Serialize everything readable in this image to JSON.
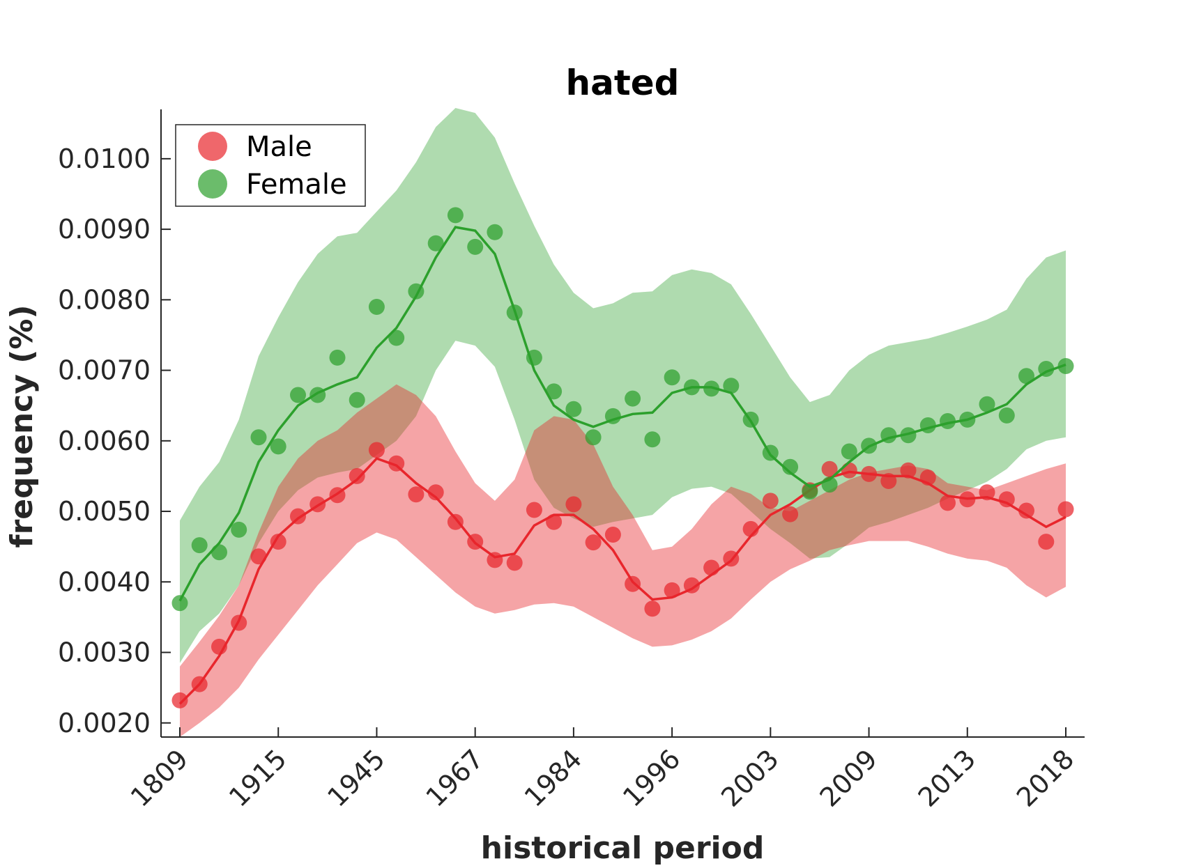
{
  "chart_data": {
    "type": "line",
    "title": "hated",
    "xlabel": "historical period",
    "ylabel": "frequency (%)",
    "ylim": [
      0.0018,
      0.0107
    ],
    "yticks": [
      "0.0020",
      "0.0030",
      "0.0040",
      "0.0050",
      "0.0060",
      "0.0070",
      "0.0080",
      "0.0090",
      "0.0100"
    ],
    "xticks": [
      "1809",
      "1915",
      "1945",
      "1967",
      "1984",
      "1996",
      "2003",
      "2009",
      "2013",
      "2018"
    ],
    "xtick_indices": [
      0,
      5,
      10,
      15,
      20,
      25,
      30,
      35,
      40,
      45
    ],
    "n_points": 46,
    "legend": {
      "position": "top-left",
      "entries": [
        "Male",
        "Female"
      ]
    },
    "grid": false,
    "series": [
      {
        "name": "Male",
        "color": "#e8262c",
        "points": [
          0.00232,
          0.00255,
          0.00308,
          0.00342,
          0.00436,
          0.00457,
          0.00493,
          0.0051,
          0.00523,
          0.0055,
          0.00587,
          0.00568,
          0.00524,
          0.00527,
          0.00485,
          0.00457,
          0.00431,
          0.00427,
          0.00502,
          0.00485,
          0.0051,
          0.00456,
          0.00467,
          0.00397,
          0.00362,
          0.00388,
          0.00395,
          0.0042,
          0.00433,
          0.00475,
          0.00515,
          0.00496,
          0.0053,
          0.0056,
          0.00558,
          0.00553,
          0.00543,
          0.00558,
          0.00548,
          0.00512,
          0.00517,
          0.00527,
          0.00517,
          0.00501,
          0.00457,
          0.00503
        ],
        "smooth": [
          0.00227,
          0.00255,
          0.00295,
          0.00345,
          0.00418,
          0.00465,
          0.0049,
          0.00508,
          0.00525,
          0.00545,
          0.00575,
          0.00565,
          0.0054,
          0.0052,
          0.0049,
          0.00455,
          0.00435,
          0.0044,
          0.0048,
          0.00495,
          0.00495,
          0.00475,
          0.00445,
          0.004,
          0.00375,
          0.00378,
          0.0039,
          0.0041,
          0.0043,
          0.00465,
          0.00495,
          0.0051,
          0.0053,
          0.00548,
          0.00556,
          0.00553,
          0.0055,
          0.0055,
          0.0054,
          0.00522,
          0.00518,
          0.0052,
          0.00512,
          0.00495,
          0.00478,
          0.00492
        ],
        "upper": [
          0.0028,
          0.00315,
          0.00352,
          0.00395,
          0.0047,
          0.00535,
          0.00575,
          0.006,
          0.00615,
          0.0064,
          0.0066,
          0.0068,
          0.00665,
          0.00635,
          0.00585,
          0.0054,
          0.00515,
          0.00545,
          0.00615,
          0.00635,
          0.0063,
          0.00595,
          0.00535,
          0.00495,
          0.00445,
          0.0045,
          0.00475,
          0.0051,
          0.00535,
          0.00525,
          0.00505,
          0.005,
          0.00515,
          0.0053,
          0.00545,
          0.00555,
          0.0056,
          0.00565,
          0.0056,
          0.0054,
          0.00535,
          0.0053,
          0.0054,
          0.0055,
          0.0056,
          0.00568
        ],
        "lower": [
          0.0018,
          0.002,
          0.00222,
          0.0025,
          0.0029,
          0.00325,
          0.0036,
          0.00395,
          0.00425,
          0.00455,
          0.0047,
          0.0046,
          0.00435,
          0.0041,
          0.00385,
          0.00365,
          0.00355,
          0.0036,
          0.00368,
          0.0037,
          0.00365,
          0.0035,
          0.00335,
          0.0032,
          0.00308,
          0.0031,
          0.00318,
          0.0033,
          0.00348,
          0.00375,
          0.004,
          0.00418,
          0.0043,
          0.00445,
          0.00452,
          0.00458,
          0.00458,
          0.00458,
          0.0045,
          0.0044,
          0.00433,
          0.0043,
          0.0042,
          0.00395,
          0.00378,
          0.00393
        ]
      },
      {
        "name": "Female",
        "color": "#2ca02c",
        "points": [
          0.0037,
          0.00452,
          0.00442,
          0.00474,
          0.00605,
          0.00592,
          0.00665,
          0.00665,
          0.00718,
          0.00658,
          0.0079,
          0.00746,
          0.00812,
          0.0088,
          0.0092,
          0.00875,
          0.00896,
          0.00782,
          0.00718,
          0.0067,
          0.00645,
          0.00605,
          0.00635,
          0.0066,
          0.00602,
          0.0069,
          0.00676,
          0.00674,
          0.00678,
          0.0063,
          0.00583,
          0.00563,
          0.00528,
          0.00538,
          0.00585,
          0.00593,
          0.00608,
          0.00608,
          0.00622,
          0.00628,
          0.0063,
          0.00652,
          0.00636,
          0.00692,
          0.00702,
          0.00706
        ],
        "smooth": [
          0.00373,
          0.00425,
          0.00455,
          0.00498,
          0.0057,
          0.00615,
          0.0065,
          0.00668,
          0.0068,
          0.0069,
          0.00732,
          0.0076,
          0.00805,
          0.0086,
          0.00903,
          0.00898,
          0.00865,
          0.00785,
          0.007,
          0.0065,
          0.0063,
          0.0062,
          0.0063,
          0.00638,
          0.0064,
          0.00668,
          0.00676,
          0.00676,
          0.00668,
          0.00628,
          0.0058,
          0.00555,
          0.00535,
          0.00545,
          0.0057,
          0.00592,
          0.00604,
          0.0061,
          0.00618,
          0.00625,
          0.0063,
          0.0064,
          0.00652,
          0.0068,
          0.00698,
          0.00708
        ],
        "upper": [
          0.00487,
          0.00535,
          0.0057,
          0.0063,
          0.0072,
          0.00775,
          0.00825,
          0.00865,
          0.0089,
          0.00895,
          0.00925,
          0.00955,
          0.00995,
          0.01045,
          0.01072,
          0.01065,
          0.0103,
          0.00965,
          0.00905,
          0.0085,
          0.0081,
          0.00788,
          0.00795,
          0.0081,
          0.00812,
          0.00835,
          0.00843,
          0.00838,
          0.00822,
          0.0078,
          0.00735,
          0.0069,
          0.00655,
          0.00665,
          0.007,
          0.00722,
          0.00735,
          0.0074,
          0.00745,
          0.00753,
          0.00762,
          0.00772,
          0.00786,
          0.0083,
          0.0086,
          0.0087
        ],
        "lower": [
          0.00285,
          0.0033,
          0.00355,
          0.00395,
          0.00455,
          0.005,
          0.0053,
          0.00548,
          0.00555,
          0.0056,
          0.0058,
          0.006,
          0.00635,
          0.007,
          0.00742,
          0.00735,
          0.00705,
          0.0063,
          0.00545,
          0.00505,
          0.0049,
          0.00478,
          0.00485,
          0.0049,
          0.00495,
          0.0052,
          0.00532,
          0.00535,
          0.00525,
          0.005,
          0.00475,
          0.00455,
          0.00433,
          0.00435,
          0.00455,
          0.00477,
          0.00485,
          0.00495,
          0.00505,
          0.00518,
          0.0053,
          0.00542,
          0.0056,
          0.00588,
          0.006,
          0.00605
        ]
      }
    ]
  }
}
